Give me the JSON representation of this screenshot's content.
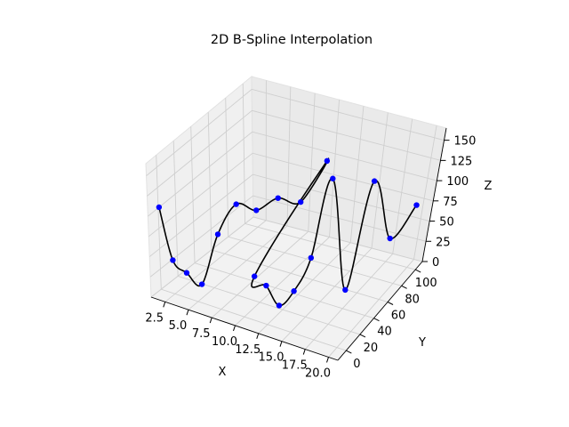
{
  "chart_data": {
    "type": "line3d",
    "title": "2D B-Spline Interpolation",
    "xlabel": "X",
    "ylabel": "Y",
    "zlabel": "Z",
    "xlim": [
      1,
      21
    ],
    "ylim": [
      -12,
      110
    ],
    "zlim": [
      0,
      165
    ],
    "xticks": [
      "2.5",
      "5.0",
      "7.5",
      "10.0",
      "12.5",
      "15.0",
      "17.5",
      "20.0"
    ],
    "xtick_values": [
      2.5,
      5,
      7.5,
      10,
      12.5,
      15,
      17.5,
      20
    ],
    "yticks": [
      "0",
      "20",
      "40",
      "60",
      "80",
      "100"
    ],
    "ytick_values": [
      0,
      20,
      40,
      60,
      80,
      100
    ],
    "zticks": [
      "0",
      "25",
      "50",
      "75",
      "100",
      "125",
      "150"
    ],
    "ztick_values": [
      0,
      25,
      50,
      75,
      100,
      125,
      150
    ],
    "grid": true,
    "points": {
      "color": "#0000ff",
      "x": [
        1,
        2,
        3,
        4,
        5,
        6,
        7,
        8,
        9,
        10,
        11,
        12,
        13,
        14,
        15,
        16,
        17,
        18,
        19,
        20
      ],
      "y": [
        1,
        4,
        9,
        16,
        25,
        36,
        49,
        64,
        81,
        100,
        1,
        4,
        9,
        16,
        25,
        36,
        49,
        64,
        81,
        100
      ],
      "z": [
        100,
        36,
        20,
        4,
        60,
        90,
        75,
        80,
        64,
        100,
        50,
        40,
        16,
        30,
        64,
        150,
        12,
        130,
        50,
        76
      ]
    },
    "curve": {
      "color": "#000000"
    }
  }
}
